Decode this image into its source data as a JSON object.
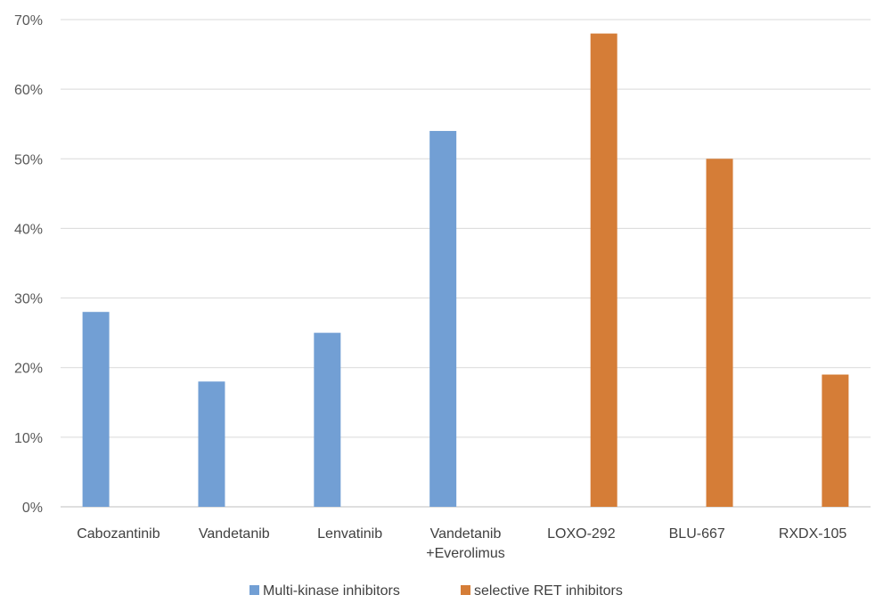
{
  "chart_data": {
    "type": "bar",
    "title": "",
    "xlabel": "",
    "ylabel": "",
    "ylim": [
      0,
      70
    ],
    "y_ticks": [
      "0%",
      "10%",
      "20%",
      "30%",
      "40%",
      "50%",
      "60%",
      "70%"
    ],
    "y_tick_values": [
      0,
      10,
      20,
      30,
      40,
      50,
      60,
      70
    ],
    "grid": true,
    "legend_position": "bottom",
    "categories": [
      [
        "Cabozantinib"
      ],
      [
        "Vandetanib"
      ],
      [
        "Lenvatinib"
      ],
      [
        "Vandetanib",
        "+Everolimus"
      ],
      [
        "LOXO-292"
      ],
      [
        "BLU-667"
      ],
      [
        "RXDX-105"
      ]
    ],
    "series": [
      {
        "name": "Multi-kinase inhibitors",
        "color": "#729fd4",
        "values": [
          28,
          18,
          25,
          54,
          null,
          null,
          null
        ]
      },
      {
        "name": "selective RET inhibitors",
        "color": "#d57d37",
        "values": [
          null,
          null,
          null,
          null,
          68,
          50,
          19
        ]
      }
    ]
  }
}
